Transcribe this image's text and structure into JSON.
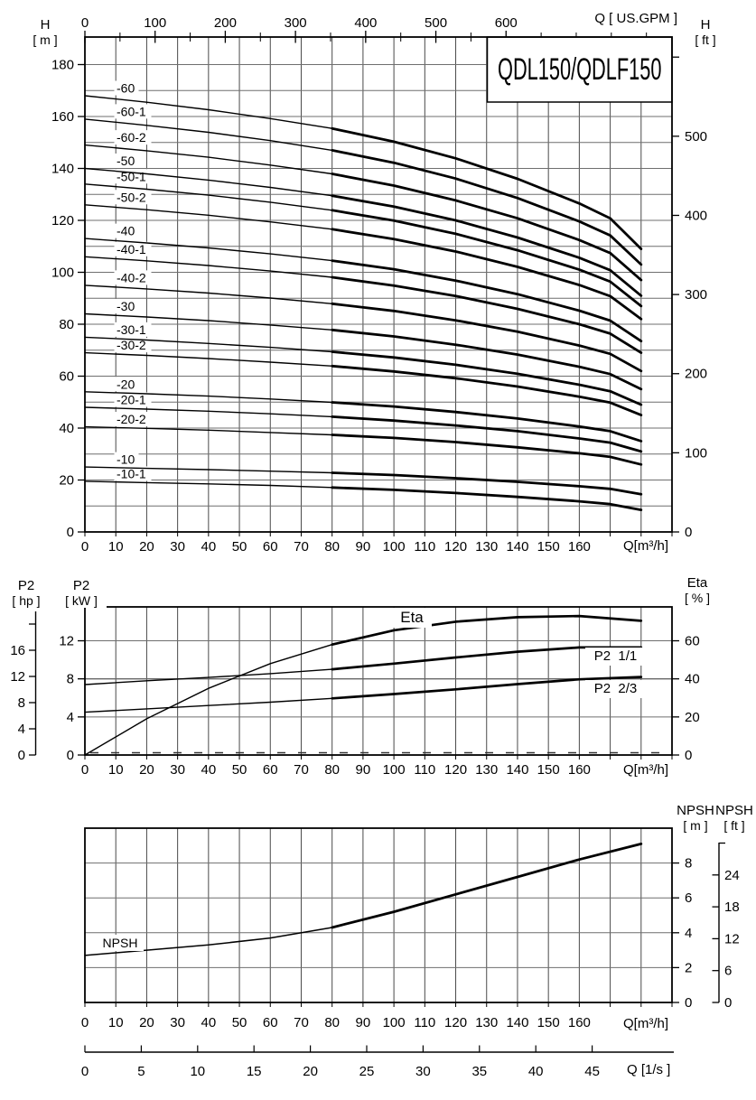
{
  "title": "QDL150/QDLF150",
  "headers": {
    "h_m_line1": "H",
    "h_m_line2": "[ m ]",
    "h_ft_line1": "H",
    "h_ft_line2": "[ ft ]",
    "q_gpm": "Q [ US.GPM ]",
    "q_m3h": "Q[m³/h]",
    "q_ls": "Q [1/s ]",
    "p2_hp_line1": "P2",
    "p2_hp_line2": "[ hp ]",
    "p2_kw_line1": "P2",
    "p2_kw_line2": "[ kW ]",
    "eta_line1": "Eta",
    "eta_line2": "[ % ]",
    "npsh_m_line1": "NPSH",
    "npsh_m_line2": "[ m ]",
    "npsh_ft_line1": "NPSH",
    "npsh_ft_line2": "[ ft ]"
  },
  "curve_overlay_labels": {
    "eta": "Eta",
    "p2_full": "P2  1/1",
    "p2_twothirds": "P2  2/3",
    "npsh": "NPSH"
  },
  "chart_data": [
    {
      "type": "line",
      "title": "QDL150/QDLF150",
      "xlabel": "Q[m³/h]",
      "x_ticks": [
        0,
        10,
        20,
        30,
        40,
        50,
        60,
        70,
        80,
        90,
        100,
        110,
        120,
        130,
        140,
        150,
        160
      ],
      "x_grid_max": 190,
      "top_axis": {
        "label": "Q [ US.GPM ]",
        "labeled_ticks": [
          0,
          100,
          200,
          300,
          400,
          500,
          600
        ],
        "minor_step": 50,
        "tick_max": 800
      },
      "y_left": {
        "label": "H [ m ]",
        "ticks": [
          0,
          20,
          40,
          60,
          80,
          100,
          120,
          140,
          160,
          180
        ],
        "grid_step": 10,
        "grid_max": 180
      },
      "y_right": {
        "label": "H [ ft ]",
        "ticks": [
          0,
          100,
          200,
          300,
          400,
          500
        ],
        "unlabeled_ticks": [
          600
        ]
      },
      "q": [
        0,
        20,
        40,
        60,
        80,
        100,
        120,
        140,
        160,
        170,
        180
      ],
      "series": [
        {
          "label": "-60",
          "start_head_m": 168,
          "head_m": [
            168,
            165.5,
            162.6,
            159.2,
            155.4,
            150.3,
            143.9,
            136.0,
            126.5,
            120.8,
            109.0
          ]
        },
        {
          "label": "-60-1",
          "start_head_m": 159,
          "head_m": [
            159,
            156.6,
            153.9,
            150.7,
            147.0,
            142.2,
            136.1,
            128.6,
            119.6,
            114.2,
            103.0
          ]
        },
        {
          "label": "-60-2",
          "start_head_m": 149,
          "head_m": [
            149,
            146.8,
            144.3,
            141.3,
            137.9,
            133.4,
            127.7,
            120.8,
            112.4,
            107.4,
            97.0
          ]
        },
        {
          "label": "-50",
          "start_head_m": 140,
          "head_m": [
            140,
            137.9,
            135.5,
            132.7,
            129.5,
            125.3,
            120.0,
            113.4,
            105.6,
            100.8,
            91.0
          ]
        },
        {
          "label": "-50-1",
          "start_head_m": 134,
          "head_m": [
            134,
            132.0,
            129.7,
            127.0,
            123.9,
            119.9,
            114.8,
            108.5,
            101.0,
            96.4,
            87.0
          ]
        },
        {
          "label": "-50-2",
          "start_head_m": 126,
          "head_m": [
            126,
            124.1,
            122.0,
            119.4,
            116.6,
            112.8,
            108.0,
            102.1,
            95.1,
            90.8,
            82.0
          ]
        },
        {
          "label": "-40",
          "start_head_m": 113,
          "head_m": [
            113,
            111.3,
            109.4,
            107.1,
            104.5,
            101.2,
            96.8,
            91.6,
            85.2,
            81.4,
            73.5
          ]
        },
        {
          "label": "-40-1",
          "start_head_m": 106,
          "head_m": [
            106,
            104.4,
            102.6,
            100.5,
            98.1,
            94.9,
            90.9,
            85.9,
            80.0,
            76.4,
            69.0
          ]
        },
        {
          "label": "-40-2",
          "start_head_m": 95,
          "head_m": [
            95,
            93.6,
            92.0,
            90.1,
            87.9,
            85.1,
            81.5,
            77.1,
            71.8,
            68.6,
            62.0
          ]
        },
        {
          "label": "-30",
          "start_head_m": 84,
          "head_m": [
            84,
            82.8,
            81.4,
            79.7,
            77.8,
            75.3,
            72.1,
            68.3,
            63.6,
            60.8,
            55.0
          ]
        },
        {
          "label": "-30-1",
          "start_head_m": 75,
          "head_m": [
            75,
            73.9,
            72.6,
            71.1,
            69.4,
            67.2,
            64.4,
            60.9,
            56.7,
            54.2,
            49.0
          ]
        },
        {
          "label": "-30-2",
          "start_head_m": 69,
          "head_m": [
            69,
            68.0,
            66.8,
            65.4,
            63.9,
            61.8,
            59.2,
            56.0,
            52.1,
            49.8,
            45.0
          ]
        },
        {
          "label": "-20",
          "start_head_m": 54,
          "head_m": [
            54,
            53.2,
            52.3,
            51.2,
            49.9,
            48.3,
            46.2,
            43.7,
            40.6,
            38.8,
            35.0
          ]
        },
        {
          "label": "-20-1",
          "start_head_m": 48,
          "head_m": [
            48,
            47.3,
            46.5,
            45.5,
            44.4,
            42.9,
            41.0,
            38.8,
            36.0,
            34.4,
            31.0
          ]
        },
        {
          "label": "-20-2",
          "start_head_m": 40.5,
          "head_m": [
            40.5,
            39.9,
            39.2,
            38.3,
            37.4,
            36.2,
            34.6,
            32.6,
            30.3,
            28.9,
            26.0
          ]
        },
        {
          "label": "-10",
          "start_head_m": 25,
          "head_m": [
            25,
            24.5,
            24.0,
            23.4,
            22.8,
            21.9,
            20.7,
            19.3,
            17.6,
            16.6,
            14.5
          ]
        },
        {
          "label": "-10-1",
          "start_head_m": 19.5,
          "head_m": [
            19.5,
            19.0,
            18.5,
            17.9,
            17.1,
            16.2,
            15.0,
            13.5,
            11.8,
            10.7,
            8.5
          ]
        }
      ]
    },
    {
      "type": "line",
      "xlabel": "Q[m³/h]",
      "x_ticks": [
        0,
        10,
        20,
        30,
        40,
        50,
        60,
        70,
        80,
        90,
        100,
        110,
        120,
        130,
        140,
        150,
        160
      ],
      "y_kw": {
        "label": "P2 [ kW ]",
        "ticks": [
          0,
          4,
          8,
          12
        ]
      },
      "y_hp": {
        "label": "P2 [ hp ]",
        "ticks": [
          0,
          4,
          8,
          12,
          16
        ]
      },
      "y_eta": {
        "label": "Eta [ % ]",
        "ticks": [
          0,
          20,
          40,
          60
        ]
      },
      "q": [
        0,
        20,
        40,
        60,
        80,
        100,
        120,
        140,
        160,
        180
      ],
      "series": [
        {
          "label": "Eta",
          "unit": "%",
          "values": [
            0,
            19,
            35,
            48,
            58,
            65.5,
            70,
            72.4,
            73,
            70.5
          ]
        },
        {
          "label": "P2  1/1",
          "unit": "kW",
          "values": [
            7.4,
            7.8,
            8.15,
            8.55,
            9.0,
            9.6,
            10.25,
            10.85,
            11.3,
            11.3
          ]
        },
        {
          "label": "P2  2/3",
          "unit": "kW",
          "values": [
            4.5,
            4.85,
            5.2,
            5.55,
            5.95,
            6.4,
            6.9,
            7.45,
            7.95,
            8.2
          ]
        }
      ]
    },
    {
      "type": "line",
      "xlabel": "Q[m³/h]",
      "x_ticks": [
        0,
        10,
        20,
        30,
        40,
        50,
        60,
        70,
        80,
        90,
        100,
        110,
        120,
        130,
        140,
        150,
        160
      ],
      "x_ls": {
        "label": "Q [1/s ]",
        "ticks": [
          0,
          5,
          10,
          15,
          20,
          25,
          30,
          35,
          40,
          45
        ]
      },
      "y_m": {
        "label": "NPSH [ m ]",
        "ticks": [
          0,
          2,
          4,
          6,
          8
        ]
      },
      "y_ft": {
        "label": "NPSH [ ft ]",
        "ticks": [
          0,
          6,
          12,
          18,
          24
        ]
      },
      "q": [
        0,
        20,
        40,
        60,
        80,
        100,
        120,
        140,
        160,
        180
      ],
      "series": [
        {
          "label": "NPSH",
          "unit": "m",
          "values": [
            2.7,
            3.0,
            3.3,
            3.7,
            4.3,
            5.2,
            6.2,
            7.2,
            8.2,
            9.1
          ]
        }
      ]
    }
  ]
}
